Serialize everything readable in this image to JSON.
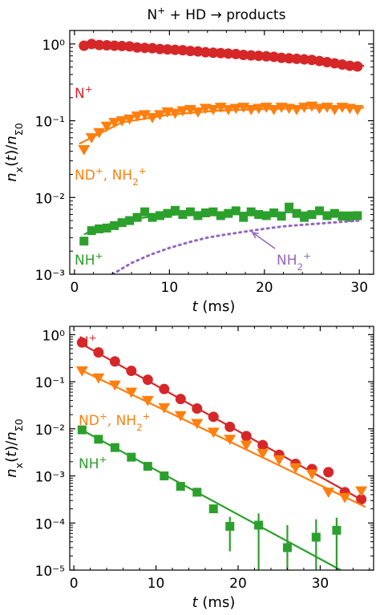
{
  "chart_data": [
    {
      "type": "scatter",
      "title": "N⁺ + HD → products",
      "xlabel": "t (ms)",
      "ylabel": "n_x(t)/n_Σ0",
      "xlim": [
        -0.5,
        31.5
      ],
      "ylim": [
        0.001,
        1.5
      ],
      "yscale": "log",
      "xticks": [
        0,
        10,
        20,
        30
      ],
      "yticks": [
        0.001,
        0.01,
        0.1,
        1
      ],
      "series": [
        {
          "name": "N⁺",
          "color": "#d62728",
          "marker": "circle",
          "x": [
            1,
            1.8,
            2.6,
            3.4,
            4.2,
            5,
            5.8,
            6.6,
            7.4,
            8.2,
            9,
            9.8,
            10.6,
            11.4,
            12.2,
            13,
            13.8,
            14.6,
            15.4,
            16.2,
            17,
            17.8,
            18.6,
            19.4,
            20.2,
            21,
            21.8,
            22.6,
            23.4,
            24.2,
            25,
            25.8,
            26.6,
            27.4,
            28.2,
            29,
            29.8
          ],
          "y": [
            0.95,
            1.0,
            0.97,
            0.96,
            0.95,
            0.94,
            0.93,
            0.9,
            0.89,
            0.88,
            0.86,
            0.85,
            0.84,
            0.83,
            0.81,
            0.8,
            0.78,
            0.77,
            0.76,
            0.75,
            0.74,
            0.72,
            0.71,
            0.7,
            0.69,
            0.68,
            0.66,
            0.65,
            0.64,
            0.63,
            0.62,
            0.6,
            0.58,
            0.56,
            0.54,
            0.52,
            0.51
          ],
          "fit": {
            "x": [
              0.5,
              30.5
            ],
            "y": [
              0.98,
              0.52
            ]
          }
        },
        {
          "name": "ND⁺, NH₂⁺",
          "color": "#ff7f0e",
          "marker": "triangle-down",
          "x": [
            1,
            1.8,
            2.6,
            3.4,
            4.2,
            5,
            5.8,
            6.6,
            7.4,
            8.2,
            9,
            9.8,
            10.6,
            11.4,
            12.2,
            13,
            13.8,
            14.6,
            15.4,
            16.2,
            17,
            17.8,
            18.6,
            19.4,
            20.2,
            21,
            21.8,
            22.6,
            23.4,
            24.2,
            25,
            25.8,
            26.6,
            27.4,
            28.2,
            29,
            29.8
          ],
          "y": [
            0.042,
            0.06,
            0.07,
            0.085,
            0.095,
            0.1,
            0.105,
            0.115,
            0.12,
            0.11,
            0.12,
            0.13,
            0.125,
            0.135,
            0.14,
            0.13,
            0.145,
            0.14,
            0.15,
            0.14,
            0.145,
            0.15,
            0.14,
            0.145,
            0.15,
            0.14,
            0.15,
            0.145,
            0.14,
            0.15,
            0.155,
            0.145,
            0.15,
            0.14,
            0.15,
            0.145,
            0.14
          ],
          "fit": {
            "x": [
              0.5,
              5,
              10,
              15,
              20,
              25,
              30.5
            ],
            "y": [
              0.05,
              0.095,
              0.12,
              0.135,
              0.142,
              0.146,
              0.148
            ]
          }
        },
        {
          "name": "NH⁺",
          "color": "#2ca02c",
          "marker": "square",
          "x": [
            1,
            1.8,
            2.6,
            3.4,
            4.2,
            5,
            5.8,
            6.6,
            7.4,
            8.2,
            9,
            9.8,
            10.6,
            11.4,
            12.2,
            13,
            13.8,
            14.6,
            15.4,
            16.2,
            17,
            17.8,
            18.6,
            19.4,
            20.2,
            21,
            21.8,
            22.6,
            23.4,
            24.2,
            25,
            25.8,
            26.6,
            27.4,
            28.2,
            29,
            29.8
          ],
          "y": [
            0.0027,
            0.0037,
            0.0039,
            0.004,
            0.0043,
            0.0047,
            0.005,
            0.0055,
            0.0065,
            0.0055,
            0.0058,
            0.0062,
            0.0068,
            0.006,
            0.0065,
            0.0058,
            0.0063,
            0.0065,
            0.0058,
            0.0062,
            0.0067,
            0.0055,
            0.0065,
            0.006,
            0.0058,
            0.0063,
            0.0057,
            0.0075,
            0.0062,
            0.0055,
            0.006,
            0.0067,
            0.0058,
            0.0062,
            0.0057,
            0.0055,
            0.0058
          ],
          "fit": {
            "x": [
              1,
              3,
              5,
              7,
              9,
              11,
              13,
              16,
              20,
              25,
              30
            ],
            "y": [
              0.0033,
              0.0043,
              0.0049,
              0.0054,
              0.0058,
              0.006,
              0.0062,
              0.0063,
              0.0064,
              0.0064,
              0.0064
            ]
          }
        },
        {
          "name": "NH₂⁺",
          "color": "#9467bd",
          "style": "dotted",
          "x": [
            4,
            6,
            8,
            10,
            12,
            14,
            16,
            18,
            20,
            22,
            24,
            26,
            28,
            30
          ],
          "y": [
            0.001,
            0.0014,
            0.0018,
            0.0022,
            0.0026,
            0.003,
            0.0033,
            0.0036,
            0.0039,
            0.0042,
            0.0044,
            0.0046,
            0.0048,
            0.005
          ]
        }
      ],
      "annotations": [
        {
          "text": "N⁺",
          "color": "#d62728"
        },
        {
          "text": "ND⁺, NH₂⁺",
          "color": "#ff7f0e"
        },
        {
          "text": "NH⁺",
          "color": "#2ca02c"
        },
        {
          "text": "NH₂⁺",
          "color": "#9467bd"
        }
      ]
    },
    {
      "type": "scatter",
      "title": "",
      "xlabel": "t (ms)",
      "ylabel": "n_x(t)/n_Σ0",
      "xlim": [
        -0.5,
        36.5
      ],
      "ylim": [
        1e-05,
        1.5
      ],
      "yscale": "log",
      "xticks": [
        0,
        10,
        20,
        30
      ],
      "yticks": [
        1e-05,
        0.0001,
        0.001,
        0.01,
        0.1,
        1
      ],
      "series": [
        {
          "name": "N⁺",
          "color": "#d62728",
          "marker": "circle",
          "x": [
            1,
            3,
            5,
            7,
            9,
            11,
            13,
            15,
            17,
            19,
            21,
            23,
            25,
            27,
            29,
            31,
            33,
            35
          ],
          "y": [
            0.68,
            0.42,
            0.27,
            0.17,
            0.11,
            0.07,
            0.043,
            0.027,
            0.018,
            0.011,
            0.007,
            0.0045,
            0.0028,
            0.0018,
            0.0014,
            0.0012,
            0.00045,
            0.00032
          ],
          "fit": {
            "x": [
              0.5,
              35.5
            ],
            "y": [
              0.7,
              0.00028
            ]
          }
        },
        {
          "name": "ND⁺, NH₂⁺",
          "color": "#ff7f0e",
          "marker": "triangle-down",
          "x": [
            1,
            3,
            5,
            7,
            9,
            11,
            13,
            15,
            17,
            19,
            21,
            23,
            25,
            27,
            29,
            31,
            33,
            35
          ],
          "y": [
            0.17,
            0.12,
            0.085,
            0.06,
            0.04,
            0.028,
            0.019,
            0.013,
            0.0085,
            0.006,
            0.0045,
            0.003,
            0.0022,
            0.0015,
            0.0011,
            0.00045,
            0.00035,
            0.00048
          ],
          "fit": {
            "x": [
              0.5,
              35.5
            ],
            "y": [
              0.19,
              0.00022
            ]
          }
        },
        {
          "name": "NH⁺",
          "color": "#2ca02c",
          "marker": "square",
          "x": [
            1,
            3,
            5,
            7,
            9,
            11,
            13,
            15,
            17,
            19,
            22.5,
            26,
            29.5,
            32
          ],
          "y": [
            0.0095,
            0.006,
            0.004,
            0.0025,
            0.0016,
            0.001,
            0.0006,
            0.00045,
            0.0002,
            8.5e-05,
            9e-05,
            3e-05,
            5e-05,
            7e-05
          ],
          "yerr_low": [
            0,
            0,
            0,
            0,
            0,
            0,
            0,
            0,
            0,
            6e-05,
            8e-05,
            2e-05,
            4e-05,
            6e-05
          ],
          "yerr_high": [
            0,
            0,
            0,
            0,
            0,
            0,
            0,
            0,
            0,
            5e-05,
            7e-05,
            6e-05,
            7e-05,
            6e-05
          ],
          "fit": {
            "x": [
              0.5,
              32.5
            ],
            "y": [
              0.0105,
              1e-05
            ]
          }
        }
      ],
      "annotations": [
        {
          "text": "N⁺",
          "color": "#d62728"
        },
        {
          "text": "ND⁺, NH₂⁺",
          "color": "#ff7f0e"
        },
        {
          "text": "NH⁺",
          "color": "#2ca02c"
        }
      ]
    }
  ]
}
